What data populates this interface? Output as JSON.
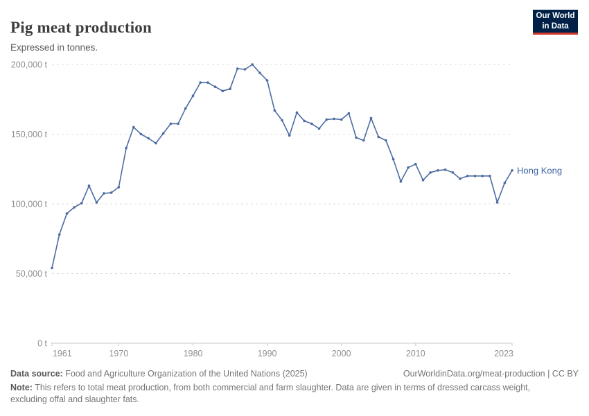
{
  "header": {
    "title": "Pig meat production",
    "subtitle": "Expressed in tonnes."
  },
  "logo": {
    "line1": "Our World",
    "line2": "in Data"
  },
  "chart_data": {
    "type": "line",
    "title": "Pig meat production",
    "unit": "t",
    "entity": "Hong Kong",
    "grid": "horizontal-dashed",
    "legend_position": "end-of-line-label",
    "ylim": [
      0,
      200000
    ],
    "yticks": [
      0,
      50000,
      100000,
      150000,
      200000
    ],
    "xticks": [
      1961,
      1970,
      1980,
      1990,
      2000,
      2010,
      2023
    ],
    "line_color": "#4c6ba3",
    "entity_label_color": "#3a62a0",
    "axis_text_color": "#8f8f8f",
    "gridline_color": "#dcdcdc",
    "axis_line_color": "#c8c8c8",
    "x": [
      1961,
      1962,
      1963,
      1964,
      1965,
      1966,
      1967,
      1968,
      1969,
      1970,
      1971,
      1972,
      1973,
      1974,
      1975,
      1976,
      1977,
      1978,
      1979,
      1980,
      1981,
      1982,
      1983,
      1984,
      1985,
      1986,
      1987,
      1988,
      1989,
      1990,
      1991,
      1992,
      1993,
      1994,
      1995,
      1996,
      1997,
      1998,
      1999,
      2000,
      2001,
      2002,
      2003,
      2004,
      2005,
      2006,
      2007,
      2008,
      2009,
      2010,
      2011,
      2012,
      2013,
      2014,
      2015,
      2016,
      2017,
      2018,
      2019,
      2020,
      2021,
      2022,
      2023
    ],
    "values": [
      54000,
      78000,
      93000,
      97500,
      100500,
      113000,
      101000,
      107500,
      108000,
      112000,
      140000,
      155000,
      150000,
      147000,
      143500,
      150500,
      157500,
      157500,
      168500,
      177500,
      187000,
      187000,
      184000,
      181000,
      182500,
      197000,
      196500,
      200000,
      194000,
      188500,
      167000,
      160000,
      149000,
      165500,
      159500,
      157500,
      154000,
      160500,
      161000,
      160500,
      165000,
      147500,
      145500,
      161500,
      148000,
      145500,
      132000,
      116000,
      126000,
      128500,
      117000,
      122500,
      124000,
      124500,
      122500,
      118000,
      120000,
      120000,
      120000,
      120000,
      101000,
      115000,
      124000
    ]
  },
  "footer": {
    "source_label": "Data source:",
    "source_text": " Food and Agriculture Organization of the United Nations (2025)",
    "link": "OurWorldinData.org/meat-production | CC BY",
    "note_label": "Note:",
    "note_text": " This refers to total meat production, from both commercial and farm slaughter. Data are given in terms of dressed carcass weight, excluding offal and slaughter fats."
  }
}
